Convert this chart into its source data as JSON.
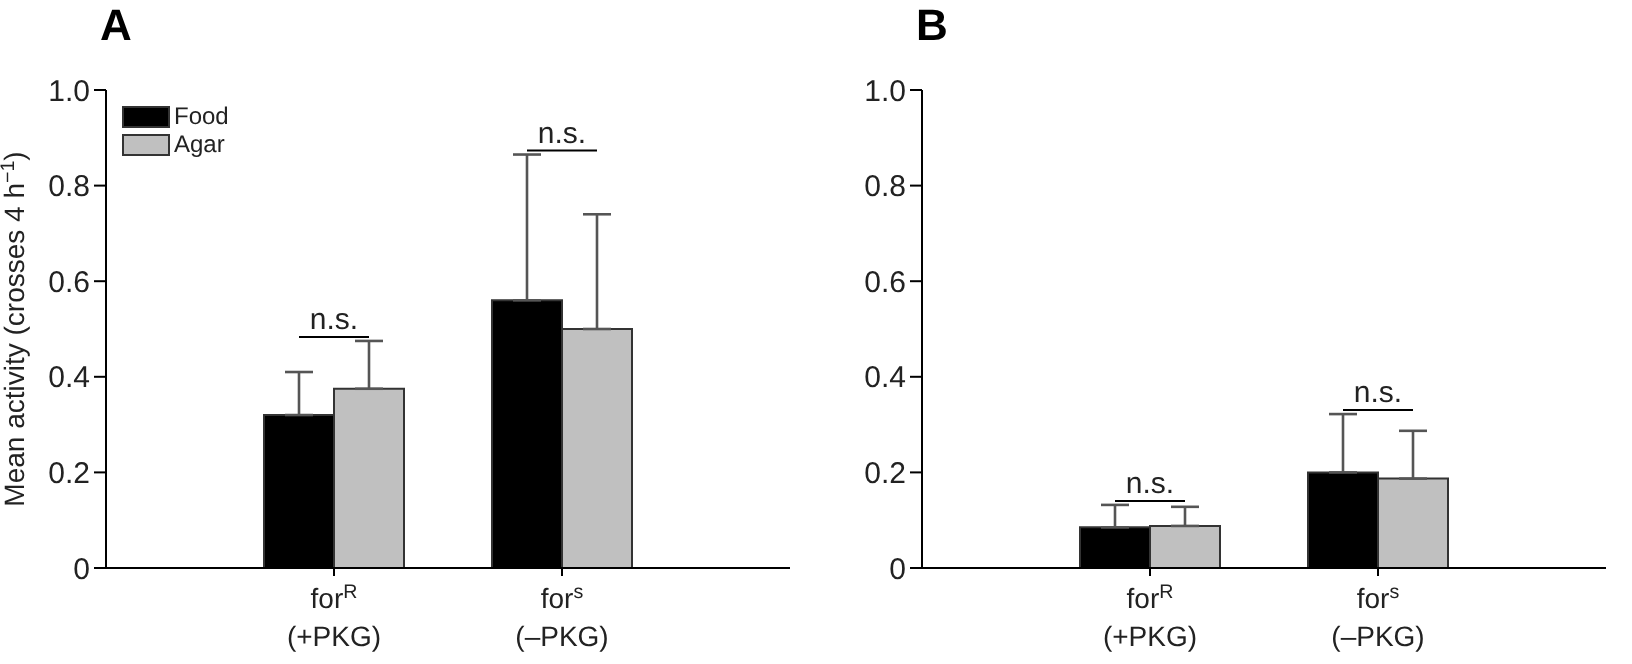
{
  "chart_data": [
    {
      "type": "bar",
      "title": "A",
      "ylabel": "Mean activity (crosses 4 h$^{−1}$)",
      "categories": [
        "for$^{R}$\n(+PKG)",
        "for$^{s}$\n(–PKG)"
      ],
      "series": [
        {
          "name": "Food",
          "color": "#000000",
          "values": [
            0.32,
            0.56
          ],
          "errors": [
            [
              0.32,
              0.41
            ],
            [
              0.56,
              0.865
            ]
          ]
        },
        {
          "name": "Agar",
          "color": "#c0c0c0",
          "values": [
            0.375,
            0.5
          ],
          "errors": [
            [
              0.375,
              0.475
            ],
            [
              0.5,
              0.74
            ]
          ]
        }
      ],
      "ylim": [
        0,
        1
      ],
      "yticks": [
        0,
        0.2,
        0.4,
        0.6,
        0.8,
        {
          "value": 1,
          "label": "1.0"
        }
      ],
      "grid": false,
      "legend": "top left",
      "annotations": [
        "n.s.",
        "n.s."
      ]
    },
    {
      "type": "bar",
      "title": "B",
      "categories": [
        "for$^{R}$\n(+PKG)",
        "for$^{s}$\n(–PKG)"
      ],
      "series": [
        {
          "color": "#000000",
          "values": [
            0.085,
            0.2
          ],
          "errors": [
            [
              0.085,
              0.132
            ],
            [
              0.2,
              0.322
            ]
          ]
        },
        {
          "color": "#c0c0c0",
          "values": [
            0.088,
            0.187
          ],
          "errors": [
            [
              0.088,
              0.128
            ],
            [
              0.187,
              0.287
            ]
          ]
        }
      ],
      "ylim": [
        0,
        1
      ],
      "yticks": [
        0,
        0.2,
        0.4,
        0.6,
        0.8,
        {
          "value": 1,
          "label": "1.0"
        }
      ],
      "grid": false,
      "legend": false,
      "annotations": [
        "n.s.",
        "n.s."
      ]
    }
  ]
}
